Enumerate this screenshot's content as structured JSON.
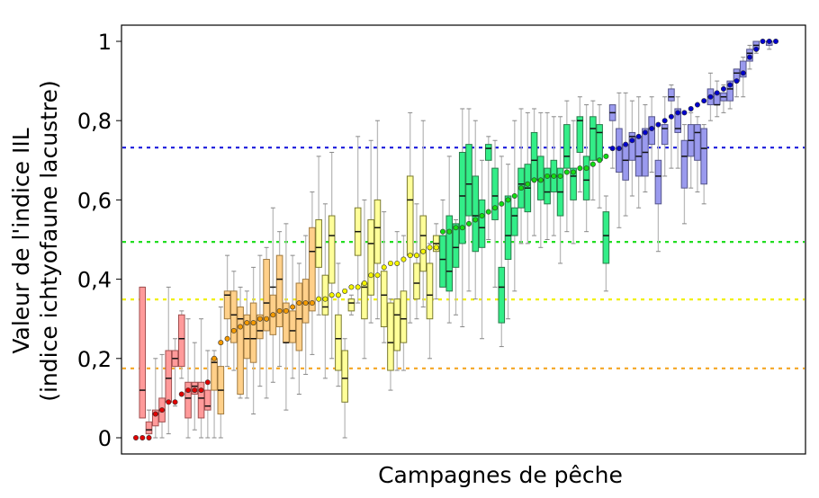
{
  "chart_data": {
    "type": "box",
    "title": "",
    "xlabel": "Campagnes de pêche",
    "ylabel_line1": "Valeur de l'indice IIL",
    "ylabel_line2": "(indice ichtyofaune lacustre)",
    "ylim": [
      0,
      1
    ],
    "yticks": [
      0,
      0.2,
      0.4,
      0.6,
      0.8,
      1
    ],
    "ytick_labels": [
      "0",
      "0,2",
      "0,4",
      "0,6",
      "0,8",
      "1"
    ],
    "grid": false,
    "legend": null,
    "thresholds": [
      {
        "name": "blue-threshold",
        "value": 0.732,
        "color": "#1a1adb"
      },
      {
        "name": "green-threshold",
        "value": 0.494,
        "color": "#22dd22"
      },
      {
        "name": "yellow-threshold",
        "value": 0.349,
        "color": "#f0f000"
      },
      {
        "name": "orange-threshold",
        "value": 0.175,
        "color": "#f5a623"
      }
    ],
    "classes": {
      "red": {
        "box": "#ff9a9a",
        "edge": "#a05050",
        "dot": "#e00000"
      },
      "orange": {
        "box": "#ffd08a",
        "edge": "#a07a40",
        "dot": "#f59a00"
      },
      "yellow": {
        "box": "#ffff99",
        "edge": "#7a7a30",
        "dot": "#f5f500"
      },
      "green": {
        "box": "#33ee88",
        "edge": "#2a7a4a",
        "dot": "#11dd11"
      },
      "blue": {
        "box": "#9a9aee",
        "edge": "#55558a",
        "dot": "#0000cc"
      }
    },
    "campaigns": [
      {
        "cls": "red",
        "dot": 0.0,
        "lo": 0.0,
        "q1": 0.0,
        "med": 0.0,
        "q3": 0.0,
        "hi": 0.0,
        "nobox": true
      },
      {
        "cls": "red",
        "dot": 0.0,
        "lo": 0.05,
        "q1": 0.05,
        "med": 0.12,
        "q3": 0.38,
        "hi": 0.38,
        "nobox": false
      },
      {
        "cls": "red",
        "dot": 0.0,
        "lo": 0.0,
        "q1": 0.01,
        "med": 0.02,
        "q3": 0.04,
        "hi": 0.07,
        "nobox": false
      },
      {
        "cls": "red",
        "dot": 0.06,
        "lo": 0.0,
        "q1": 0.03,
        "med": 0.06,
        "q3": 0.07,
        "hi": 0.2,
        "nobox": false
      },
      {
        "cls": "red",
        "dot": 0.07,
        "lo": 0.0,
        "q1": 0.04,
        "med": 0.07,
        "q3": 0.1,
        "hi": 0.21,
        "nobox": false
      },
      {
        "cls": "red",
        "dot": 0.09,
        "lo": 0.01,
        "q1": 0.09,
        "med": 0.15,
        "q3": 0.22,
        "hi": 0.38,
        "nobox": false
      },
      {
        "cls": "red",
        "dot": 0.09,
        "lo": 0.08,
        "q1": 0.18,
        "med": 0.2,
        "q3": 0.22,
        "hi": 0.25,
        "nobox": false
      },
      {
        "cls": "red",
        "dot": 0.11,
        "lo": 0.15,
        "q1": 0.18,
        "med": 0.25,
        "q3": 0.31,
        "hi": 0.32,
        "nobox": false
      },
      {
        "cls": "red",
        "dot": 0.12,
        "lo": 0.0,
        "q1": 0.05,
        "med": 0.1,
        "q3": 0.14,
        "hi": 0.3,
        "nobox": false
      },
      {
        "cls": "red",
        "dot": 0.12,
        "lo": 0.02,
        "q1": 0.11,
        "med": 0.13,
        "q3": 0.14,
        "hi": 0.24,
        "nobox": false
      },
      {
        "cls": "red",
        "dot": 0.12,
        "lo": 0.0,
        "q1": 0.05,
        "med": 0.1,
        "q3": 0.14,
        "hi": 0.3,
        "nobox": false
      },
      {
        "cls": "red",
        "dot": 0.14,
        "lo": 0.0,
        "q1": 0.07,
        "med": 0.08,
        "q3": 0.12,
        "hi": 0.22,
        "nobox": false
      },
      {
        "cls": "orange",
        "dot": 0.2,
        "lo": 0.0,
        "q1": 0.12,
        "med": 0.19,
        "q3": 0.2,
        "hi": 0.22,
        "nobox": false
      },
      {
        "cls": "orange",
        "dot": 0.24,
        "lo": 0.0,
        "q1": 0.06,
        "med": 0.12,
        "q3": 0.18,
        "hi": 0.33,
        "nobox": false
      },
      {
        "cls": "orange",
        "dot": 0.25,
        "lo": 0.18,
        "q1": 0.3,
        "med": 0.36,
        "q3": 0.37,
        "hi": 0.46,
        "nobox": false
      },
      {
        "cls": "orange",
        "dot": 0.27,
        "lo": 0.17,
        "q1": 0.24,
        "med": 0.31,
        "q3": 0.37,
        "hi": 0.42,
        "nobox": false
      },
      {
        "cls": "orange",
        "dot": 0.28,
        "lo": 0.1,
        "q1": 0.11,
        "med": 0.3,
        "q3": 0.33,
        "hi": 0.38,
        "nobox": false
      },
      {
        "cls": "orange",
        "dot": 0.29,
        "lo": 0.1,
        "q1": 0.2,
        "med": 0.25,
        "q3": 0.31,
        "hi": 0.37,
        "nobox": false
      },
      {
        "cls": "orange",
        "dot": 0.29,
        "lo": 0.06,
        "q1": 0.19,
        "med": 0.25,
        "q3": 0.34,
        "hi": 0.43,
        "nobox": false
      },
      {
        "cls": "orange",
        "dot": 0.3,
        "lo": 0.13,
        "q1": 0.25,
        "med": 0.27,
        "q3": 0.31,
        "hi": 0.46,
        "nobox": false
      },
      {
        "cls": "orange",
        "dot": 0.3,
        "lo": 0.1,
        "q1": 0.27,
        "med": 0.34,
        "q3": 0.45,
        "hi": 0.48,
        "nobox": false
      },
      {
        "cls": "orange",
        "dot": 0.31,
        "lo": 0.14,
        "q1": 0.26,
        "med": 0.38,
        "q3": 0.36,
        "hi": 0.58,
        "nobox": false
      },
      {
        "cls": "orange",
        "dot": 0.32,
        "lo": 0.18,
        "q1": 0.28,
        "med": 0.4,
        "q3": 0.46,
        "hi": 0.52,
        "nobox": false
      },
      {
        "cls": "orange",
        "dot": 0.32,
        "lo": 0.07,
        "q1": 0.24,
        "med": 0.24,
        "q3": 0.34,
        "hi": 0.54,
        "nobox": false
      },
      {
        "cls": "orange",
        "dot": 0.33,
        "lo": 0.15,
        "q1": 0.24,
        "med": 0.27,
        "q3": 0.32,
        "hi": 0.46,
        "nobox": false
      },
      {
        "cls": "orange",
        "dot": 0.34,
        "lo": 0.11,
        "q1": 0.22,
        "med": 0.3,
        "q3": 0.39,
        "hi": 0.44,
        "nobox": false
      },
      {
        "cls": "orange",
        "dot": 0.34,
        "lo": 0.16,
        "q1": 0.29,
        "med": 0.34,
        "q3": 0.4,
        "hi": 0.51,
        "nobox": false
      },
      {
        "cls": "orange",
        "dot": 0.34,
        "lo": 0.21,
        "q1": 0.32,
        "med": 0.47,
        "q3": 0.53,
        "hi": 0.62,
        "nobox": false
      },
      {
        "cls": "yellow",
        "dot": 0.35,
        "lo": 0.31,
        "q1": 0.43,
        "med": 0.48,
        "q3": 0.55,
        "hi": 0.71,
        "nobox": false
      },
      {
        "cls": "yellow",
        "dot": 0.35,
        "lo": 0.15,
        "q1": 0.31,
        "med": 0.33,
        "q3": 0.41,
        "hi": 0.59,
        "nobox": false
      },
      {
        "cls": "yellow",
        "dot": 0.36,
        "lo": 0.2,
        "q1": 0.39,
        "med": 0.51,
        "q3": 0.56,
        "hi": 0.72,
        "nobox": false
      },
      {
        "cls": "yellow",
        "dot": 0.36,
        "lo": 0.13,
        "q1": 0.17,
        "med": 0.25,
        "q3": 0.31,
        "hi": 0.44,
        "nobox": false
      },
      {
        "cls": "yellow",
        "dot": 0.37,
        "lo": 0.0,
        "q1": 0.09,
        "med": 0.15,
        "q3": 0.22,
        "hi": 0.25,
        "nobox": false
      },
      {
        "cls": "yellow",
        "dot": 0.38,
        "lo": 0.31,
        "q1": 0.32,
        "med": 0.34,
        "q3": 0.35,
        "hi": 0.36,
        "nobox": false
      },
      {
        "cls": "yellow",
        "dot": 0.38,
        "lo": 0.34,
        "q1": 0.46,
        "med": 0.52,
        "q3": 0.58,
        "hi": 0.76,
        "nobox": false
      },
      {
        "cls": "yellow",
        "dot": 0.39,
        "lo": 0.2,
        "q1": 0.3,
        "med": 0.38,
        "q3": 0.39,
        "hi": 0.6,
        "nobox": false
      },
      {
        "cls": "yellow",
        "dot": 0.41,
        "lo": 0.29,
        "q1": 0.36,
        "med": 0.49,
        "q3": 0.55,
        "hi": 0.75,
        "nobox": false
      },
      {
        "cls": "yellow",
        "dot": 0.41,
        "lo": 0.3,
        "q1": 0.44,
        "med": 0.53,
        "q3": 0.6,
        "hi": 0.8,
        "nobox": false
      },
      {
        "cls": "yellow",
        "dot": 0.43,
        "lo": 0.24,
        "q1": 0.28,
        "med": 0.36,
        "q3": 0.42,
        "hi": 0.57,
        "nobox": false
      },
      {
        "cls": "yellow",
        "dot": 0.44,
        "lo": 0.12,
        "q1": 0.17,
        "med": 0.24,
        "q3": 0.34,
        "hi": 0.35,
        "nobox": false
      },
      {
        "cls": "yellow",
        "dot": 0.44,
        "lo": 0.17,
        "q1": 0.22,
        "med": 0.31,
        "q3": 0.35,
        "hi": 0.52,
        "nobox": false
      },
      {
        "cls": "yellow",
        "dot": 0.45,
        "lo": 0.17,
        "q1": 0.24,
        "med": 0.3,
        "q3": 0.37,
        "hi": 0.51,
        "nobox": false
      },
      {
        "cls": "yellow",
        "dot": 0.46,
        "lo": 0.29,
        "q1": 0.46,
        "med": 0.6,
        "q3": 0.66,
        "hi": 0.82,
        "nobox": false
      },
      {
        "cls": "yellow",
        "dot": 0.46,
        "lo": 0.3,
        "q1": 0.35,
        "med": 0.39,
        "q3": 0.44,
        "hi": 0.59,
        "nobox": false
      },
      {
        "cls": "yellow",
        "dot": 0.47,
        "lo": 0.33,
        "q1": 0.42,
        "med": 0.51,
        "q3": 0.56,
        "hi": 0.8,
        "nobox": false
      },
      {
        "cls": "yellow",
        "dot": 0.48,
        "lo": 0.2,
        "q1": 0.3,
        "med": 0.36,
        "q3": 0.44,
        "hi": 0.49,
        "nobox": false
      },
      {
        "cls": "yellow",
        "dot": 0.48,
        "lo": 0.35,
        "q1": 0.47,
        "med": 0.49,
        "q3": 0.51,
        "hi": 0.54,
        "nobox": false
      },
      {
        "cls": "green",
        "dot": 0.52,
        "lo": 0.4,
        "q1": 0.38,
        "med": 0.45,
        "q3": 0.51,
        "hi": 0.6,
        "nobox": false
      },
      {
        "cls": "green",
        "dot": 0.52,
        "lo": 0.29,
        "q1": 0.37,
        "med": 0.42,
        "q3": 0.56,
        "hi": 0.71,
        "nobox": false
      },
      {
        "cls": "green",
        "dot": 0.53,
        "lo": 0.31,
        "q1": 0.43,
        "med": 0.48,
        "q3": 0.54,
        "hi": 0.55,
        "nobox": false
      },
      {
        "cls": "green",
        "dot": 0.53,
        "lo": 0.28,
        "q1": 0.49,
        "med": 0.61,
        "q3": 0.72,
        "hi": 0.83,
        "nobox": false
      },
      {
        "cls": "green",
        "dot": 0.54,
        "lo": 0.37,
        "q1": 0.56,
        "med": 0.64,
        "q3": 0.74,
        "hi": 0.83,
        "nobox": false
      },
      {
        "cls": "green",
        "dot": 0.55,
        "lo": 0.35,
        "q1": 0.47,
        "med": 0.56,
        "q3": 0.66,
        "hi": 0.8,
        "nobox": false
      },
      {
        "cls": "green",
        "dot": 0.56,
        "lo": 0.25,
        "q1": 0.48,
        "med": 0.53,
        "q3": 0.6,
        "hi": 0.7,
        "nobox": false
      },
      {
        "cls": "green",
        "dot": 0.57,
        "lo": 0.5,
        "q1": 0.7,
        "med": 0.73,
        "q3": 0.74,
        "hi": 0.76,
        "nobox": false
      },
      {
        "cls": "green",
        "dot": 0.58,
        "lo": 0.38,
        "q1": 0.55,
        "med": 0.61,
        "q3": 0.68,
        "hi": 0.75,
        "nobox": false
      },
      {
        "cls": "green",
        "dot": 0.59,
        "lo": 0.23,
        "q1": 0.29,
        "med": 0.38,
        "q3": 0.43,
        "hi": 0.71,
        "nobox": false
      },
      {
        "cls": "green",
        "dot": 0.6,
        "lo": 0.3,
        "q1": 0.45,
        "med": 0.51,
        "q3": 0.61,
        "hi": 0.69,
        "nobox": false
      },
      {
        "cls": "green",
        "dot": 0.61,
        "lo": 0.37,
        "q1": 0.51,
        "med": 0.56,
        "q3": 0.58,
        "hi": 0.8,
        "nobox": false
      },
      {
        "cls": "green",
        "dot": 0.63,
        "lo": 0.49,
        "q1": 0.58,
        "med": 0.64,
        "q3": 0.68,
        "hi": 0.83,
        "nobox": false
      },
      {
        "cls": "green",
        "dot": 0.64,
        "lo": 0.49,
        "q1": 0.57,
        "med": 0.63,
        "q3": 0.69,
        "hi": 0.82,
        "nobox": false
      },
      {
        "cls": "green",
        "dot": 0.65,
        "lo": 0.51,
        "q1": 0.65,
        "med": 0.7,
        "q3": 0.77,
        "hi": 0.83,
        "nobox": false
      },
      {
        "cls": "green",
        "dot": 0.65,
        "lo": 0.48,
        "q1": 0.6,
        "med": 0.65,
        "q3": 0.71,
        "hi": 0.82,
        "nobox": false
      },
      {
        "cls": "green",
        "dot": 0.66,
        "lo": 0.5,
        "q1": 0.59,
        "med": 0.62,
        "q3": 0.68,
        "hi": 0.82,
        "nobox": false
      },
      {
        "cls": "green",
        "dot": 0.66,
        "lo": 0.51,
        "q1": 0.62,
        "med": 0.66,
        "q3": 0.7,
        "hi": 0.81,
        "nobox": false
      },
      {
        "cls": "green",
        "dot": 0.66,
        "lo": 0.44,
        "q1": 0.56,
        "med": 0.62,
        "q3": 0.68,
        "hi": 0.81,
        "nobox": false
      },
      {
        "cls": "green",
        "dot": 0.67,
        "lo": 0.52,
        "q1": 0.68,
        "med": 0.71,
        "q3": 0.79,
        "hi": 0.85,
        "nobox": false
      },
      {
        "cls": "green",
        "dot": 0.67,
        "lo": 0.49,
        "q1": 0.6,
        "med": 0.66,
        "q3": 0.68,
        "hi": 0.8,
        "nobox": false
      },
      {
        "cls": "green",
        "dot": 0.68,
        "lo": 0.62,
        "q1": 0.72,
        "med": 0.8,
        "q3": 0.81,
        "hi": 0.86,
        "nobox": false
      },
      {
        "cls": "green",
        "dot": 0.68,
        "lo": 0.52,
        "q1": 0.6,
        "med": 0.65,
        "q3": 0.71,
        "hi": 0.84,
        "nobox": false
      },
      {
        "cls": "green",
        "dot": 0.69,
        "lo": 0.6,
        "q1": 0.7,
        "med": 0.78,
        "q3": 0.81,
        "hi": 0.85,
        "nobox": false
      },
      {
        "cls": "green",
        "dot": 0.7,
        "lo": 0.58,
        "q1": 0.7,
        "med": 0.77,
        "q3": 0.79,
        "hi": 0.84,
        "nobox": false
      },
      {
        "cls": "green",
        "dot": 0.71,
        "lo": 0.37,
        "q1": 0.44,
        "med": 0.51,
        "q3": 0.57,
        "hi": 0.61,
        "nobox": false
      },
      {
        "cls": "blue",
        "dot": 0.73,
        "lo": 0.68,
        "q1": 0.8,
        "med": 0.82,
        "q3": 0.84,
        "hi": 0.83,
        "nobox": false
      },
      {
        "cls": "blue",
        "dot": 0.73,
        "lo": 0.53,
        "q1": 0.67,
        "med": 0.73,
        "q3": 0.78,
        "hi": 0.87,
        "nobox": false
      },
      {
        "cls": "blue",
        "dot": 0.74,
        "lo": 0.56,
        "q1": 0.65,
        "med": 0.7,
        "q3": 0.74,
        "hi": 0.87,
        "nobox": false
      },
      {
        "cls": "blue",
        "dot": 0.75,
        "lo": 0.61,
        "q1": 0.7,
        "med": 0.76,
        "q3": 0.77,
        "hi": 0.85,
        "nobox": false
      },
      {
        "cls": "blue",
        "dot": 0.76,
        "lo": 0.58,
        "q1": 0.66,
        "med": 0.71,
        "q3": 0.76,
        "hi": 0.86,
        "nobox": false
      },
      {
        "cls": "blue",
        "dot": 0.77,
        "lo": 0.62,
        "q1": 0.66,
        "med": 0.72,
        "q3": 0.78,
        "hi": 0.84,
        "nobox": false
      },
      {
        "cls": "blue",
        "dot": 0.78,
        "lo": 0.67,
        "q1": 0.74,
        "med": 0.78,
        "q3": 0.81,
        "hi": 0.86,
        "nobox": false
      },
      {
        "cls": "blue",
        "dot": 0.79,
        "lo": 0.47,
        "q1": 0.59,
        "med": 0.66,
        "q3": 0.7,
        "hi": 0.79,
        "nobox": false
      },
      {
        "cls": "blue",
        "dot": 0.8,
        "lo": 0.66,
        "q1": 0.74,
        "med": 0.78,
        "q3": 0.79,
        "hi": 0.86,
        "nobox": false
      },
      {
        "cls": "blue",
        "dot": 0.81,
        "lo": 0.68,
        "q1": 0.85,
        "med": 0.86,
        "q3": 0.88,
        "hi": 0.89,
        "nobox": false
      },
      {
        "cls": "blue",
        "dot": 0.82,
        "lo": 0.68,
        "q1": 0.77,
        "med": 0.78,
        "q3": 0.83,
        "hi": 0.86,
        "nobox": false
      },
      {
        "cls": "blue",
        "dot": 0.82,
        "lo": 0.54,
        "q1": 0.63,
        "med": 0.71,
        "q3": 0.75,
        "hi": 0.79,
        "nobox": false
      },
      {
        "cls": "blue",
        "dot": 0.83,
        "lo": 0.63,
        "q1": 0.71,
        "med": 0.75,
        "q3": 0.79,
        "hi": 0.82,
        "nobox": false
      },
      {
        "cls": "blue",
        "dot": 0.84,
        "lo": 0.62,
        "q1": 0.7,
        "med": 0.77,
        "q3": 0.79,
        "hi": 0.81,
        "nobox": false
      },
      {
        "cls": "blue",
        "dot": 0.85,
        "lo": 0.59,
        "q1": 0.64,
        "med": 0.73,
        "q3": 0.78,
        "hi": 0.79,
        "nobox": false
      },
      {
        "cls": "blue",
        "dot": 0.86,
        "lo": 0.8,
        "q1": 0.84,
        "med": 0.86,
        "q3": 0.88,
        "hi": 0.92,
        "nobox": false
      },
      {
        "cls": "blue",
        "dot": 0.87,
        "lo": 0.81,
        "q1": 0.84,
        "med": 0.84,
        "q3": 0.87,
        "hi": 0.9,
        "nobox": false
      },
      {
        "cls": "blue",
        "dot": 0.88,
        "lo": 0.82,
        "q1": 0.85,
        "med": 0.86,
        "q3": 0.87,
        "hi": 0.89,
        "nobox": false
      },
      {
        "cls": "blue",
        "dot": 0.89,
        "lo": 0.83,
        "q1": 0.85,
        "med": 0.88,
        "q3": 0.9,
        "hi": 0.89,
        "nobox": false
      },
      {
        "cls": "blue",
        "dot": 0.9,
        "lo": 0.86,
        "q1": 0.9,
        "med": 0.92,
        "q3": 0.93,
        "hi": 0.93,
        "nobox": false
      },
      {
        "cls": "blue",
        "dot": 0.92,
        "lo": 0.86,
        "q1": 0.91,
        "med": 0.92,
        "q3": 0.95,
        "hi": 0.96,
        "nobox": false
      },
      {
        "cls": "blue",
        "dot": 0.96,
        "lo": 0.93,
        "q1": 0.95,
        "med": 0.97,
        "q3": 0.98,
        "hi": 0.99,
        "nobox": false
      },
      {
        "cls": "blue",
        "dot": 0.98,
        "lo": 0.97,
        "q1": 0.98,
        "med": 0.99,
        "q3": 1.0,
        "hi": 1.0,
        "nobox": false
      },
      {
        "cls": "blue",
        "dot": 1.0,
        "lo": 1.0,
        "q1": 1.0,
        "med": 1.0,
        "q3": 1.0,
        "hi": 1.0,
        "nobox": true
      },
      {
        "cls": "blue",
        "dot": 1.0,
        "lo": 0.98,
        "q1": 0.99,
        "med": 1.0,
        "q3": 1.0,
        "hi": 1.0,
        "nobox": false
      },
      {
        "cls": "blue",
        "dot": 1.0,
        "lo": 1.0,
        "q1": 1.0,
        "med": 1.0,
        "q3": 1.0,
        "hi": 1.0,
        "nobox": true
      }
    ]
  }
}
